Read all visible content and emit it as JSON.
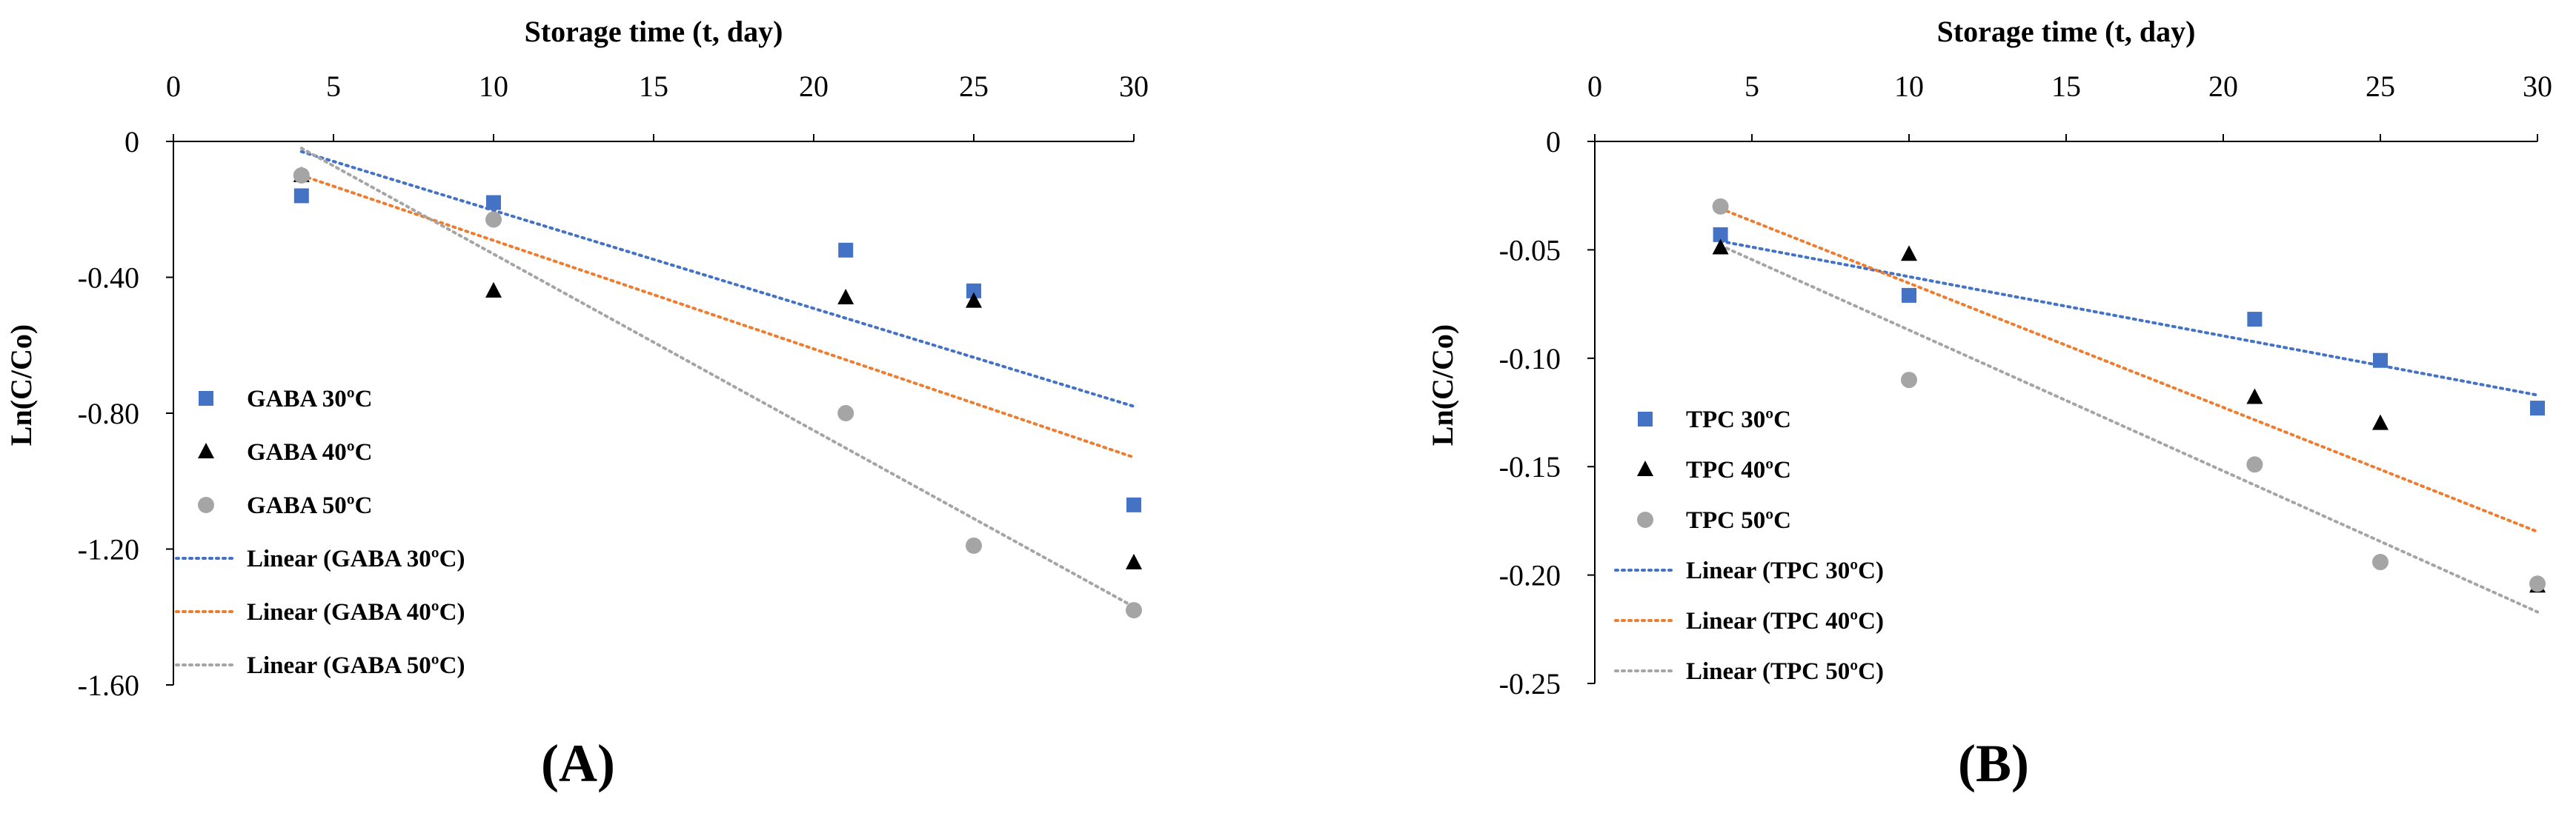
{
  "figure": {
    "panels": [
      "(A)",
      "(B)"
    ]
  },
  "chart_data": [
    {
      "type": "scatter",
      "panel_label": "(A)",
      "title": "",
      "xlabel": "Storage time (t, day)",
      "ylabel": "Ln(C/Co)",
      "x_axis_position": "top",
      "xlim": [
        0,
        30
      ],
      "ylim": [
        -1.6,
        0
      ],
      "x_ticks": [
        0,
        5,
        10,
        15,
        20,
        25,
        30
      ],
      "x_tick_labels": [
        "0",
        "5",
        "10",
        "15",
        "20",
        "25",
        "30"
      ],
      "y_ticks": [
        0,
        -0.4,
        -0.8,
        -1.2,
        -1.6
      ],
      "y_tick_labels": [
        "0",
        "-0.40",
        "-0.80",
        "-1.20",
        "-1.60"
      ],
      "grid": false,
      "legend_position": "left",
      "series": [
        {
          "name": "GABA 30ºC",
          "marker": "square",
          "color": "#4472C4",
          "x": [
            4,
            10,
            21,
            25,
            30
          ],
          "y": [
            -0.16,
            -0.18,
            -0.32,
            -0.44,
            -1.07
          ]
        },
        {
          "name": "GABA 40ºC",
          "marker": "triangle",
          "color": "#000000",
          "x": [
            4,
            10,
            21,
            25,
            30
          ],
          "y": [
            -0.1,
            -0.44,
            -0.46,
            -0.47,
            -1.24
          ]
        },
        {
          "name": "GABA 50ºC",
          "marker": "circle",
          "color": "#A5A5A5",
          "x": [
            4,
            10,
            21,
            25,
            30
          ],
          "y": [
            -0.1,
            -0.23,
            -0.8,
            -1.19,
            -1.38
          ]
        }
      ],
      "trendlines": [
        {
          "name": "Linear (GABA 30ºC)",
          "color": "#4472C4",
          "x": [
            4,
            30
          ],
          "y": [
            -0.03,
            -0.78
          ]
        },
        {
          "name": "Linear (GABA 40ºC)",
          "color": "#ED7D31",
          "x": [
            4,
            30
          ],
          "y": [
            -0.1,
            -0.93
          ]
        },
        {
          "name": "Linear (GABA 50ºC)",
          "color": "#A5A5A5",
          "x": [
            4,
            30
          ],
          "y": [
            -0.02,
            -1.37
          ]
        }
      ]
    },
    {
      "type": "scatter",
      "panel_label": "(B)",
      "title": "",
      "xlabel": "Storage time (t, day)",
      "ylabel": "Ln(C/Co)",
      "x_axis_position": "top",
      "xlim": [
        0,
        30
      ],
      "ylim": [
        -0.25,
        0
      ],
      "x_ticks": [
        0,
        5,
        10,
        15,
        20,
        25,
        30
      ],
      "x_tick_labels": [
        "0",
        "5",
        "10",
        "15",
        "20",
        "25",
        "30"
      ],
      "y_ticks": [
        0,
        -0.05,
        -0.1,
        -0.15,
        -0.2,
        -0.25
      ],
      "y_tick_labels": [
        "0",
        "-0.05",
        "-0.10",
        "-0.15",
        "-0.20",
        "-0.25"
      ],
      "grid": false,
      "legend_position": "left",
      "series": [
        {
          "name": "TPC 30ºC",
          "marker": "square",
          "color": "#4472C4",
          "x": [
            4,
            10,
            21,
            25,
            30
          ],
          "y": [
            -0.043,
            -0.071,
            -0.082,
            -0.101,
            -0.123
          ]
        },
        {
          "name": "TPC 40ºC",
          "marker": "triangle",
          "color": "#000000",
          "x": [
            4,
            10,
            21,
            25,
            30
          ],
          "y": [
            -0.049,
            -0.052,
            -0.118,
            -0.13,
            -0.205
          ]
        },
        {
          "name": "TPC 50ºC",
          "marker": "circle",
          "color": "#A5A5A5",
          "x": [
            4,
            10,
            21,
            25,
            30
          ],
          "y": [
            -0.03,
            -0.11,
            -0.149,
            -0.194,
            -0.204
          ]
        }
      ],
      "trendlines": [
        {
          "name": "Linear (TPC 30ºC)",
          "color": "#4472C4",
          "x": [
            4,
            30
          ],
          "y": [
            -0.046,
            -0.117
          ]
        },
        {
          "name": "Linear (TPC 40ºC)",
          "color": "#ED7D31",
          "x": [
            4,
            30
          ],
          "y": [
            -0.031,
            -0.18
          ]
        },
        {
          "name": "Linear (TPC 50ºC)",
          "color": "#A5A5A5",
          "x": [
            4,
            30
          ],
          "y": [
            -0.048,
            -0.217
          ]
        }
      ]
    }
  ]
}
